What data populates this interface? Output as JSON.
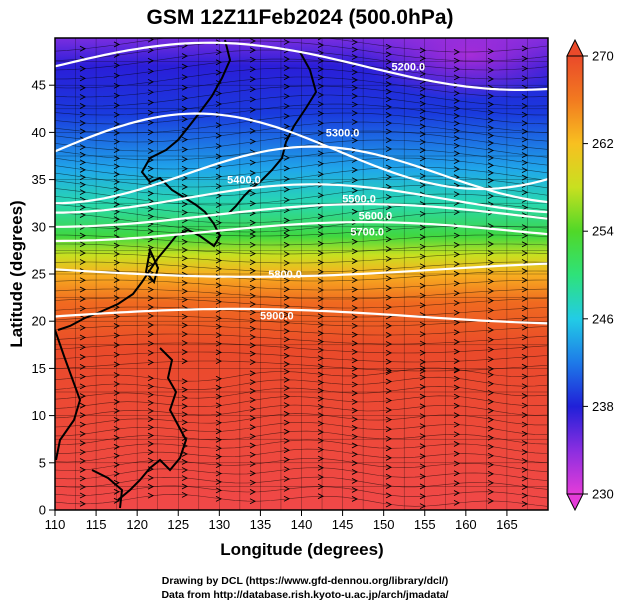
{
  "title": "GSM 12Z11Feb2024 (500.0hPa)",
  "credits": {
    "line1": "Drawing by DCL (https://www.gfd-dennou.org/library/dcl/)",
    "line2": "Data from http://database.rish.kyoto-u.ac.jp/arch/jmadata/"
  },
  "chart_data": {
    "type": "heatmap",
    "title": "GSM 12Z11Feb2024 (500.0hPa)",
    "xlabel": "Longitude (degrees)",
    "ylabel": "Latitude  (degrees)",
    "xlim": [
      110,
      170
    ],
    "ylim": [
      0,
      50
    ],
    "x_ticks": [
      "110",
      "115",
      "120",
      "125",
      "130",
      "135",
      "140",
      "145",
      "150",
      "155",
      "160",
      "165"
    ],
    "y_ticks": [
      "0",
      "5",
      "10",
      "15",
      "20",
      "25",
      "30",
      "35",
      "40",
      "45"
    ],
    "colorbar": {
      "range": [
        230,
        270
      ],
      "ticks": [
        "230",
        "238",
        "246",
        "254",
        "262",
        "270"
      ],
      "colors": [
        "#e43cd8",
        "#7a2ee0",
        "#1a1ad8",
        "#1e7ae8",
        "#22cce6",
        "#2ee27a",
        "#50d828",
        "#c8e020",
        "#f8c020",
        "#f27a20",
        "#ea4a2a",
        "#f05050"
      ]
    },
    "contours": [
      {
        "label": "5200.0",
        "lon": 153,
        "lat": 47
      },
      {
        "label": "5300.0",
        "lon": 145,
        "lat": 40
      },
      {
        "label": "5400.0",
        "lon": 133,
        "lat": 35
      },
      {
        "label": "5500.0",
        "lon": 147,
        "lat": 33
      },
      {
        "label": "5600.0",
        "lon": 149,
        "lat": 31.2
      },
      {
        "label": "5700.0",
        "lon": 148,
        "lat": 29.5
      },
      {
        "label": "5800.0",
        "lon": 138,
        "lat": 25
      },
      {
        "label": "5900.0",
        "lon": 137,
        "lat": 20.6
      }
    ],
    "grid": true
  }
}
